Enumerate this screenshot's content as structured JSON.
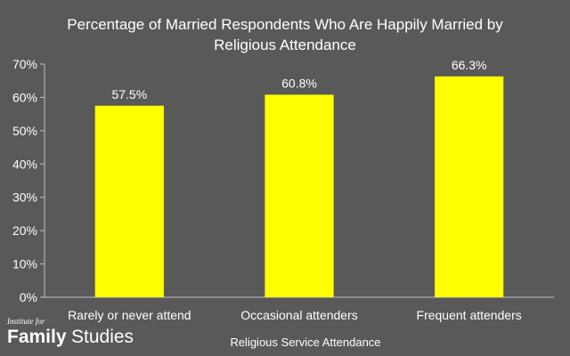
{
  "chart_data": {
    "type": "bar",
    "title_lines": [
      "Percentage of Married Respondents Who Are Happily Married by",
      "Religious Attendance"
    ],
    "categories": [
      "Rarely or never attend",
      "Occasional attenders",
      "Frequent attenders"
    ],
    "values": [
      57.5,
      60.8,
      66.3
    ],
    "value_labels": [
      "57.5%",
      "60.8%",
      "66.3%"
    ],
    "xlabel": "Religious Service Attendance",
    "ylabel": "",
    "ylim": [
      0,
      70
    ],
    "yticks": [
      0,
      10,
      20,
      30,
      40,
      50,
      60,
      70
    ],
    "ytick_labels": [
      "0%",
      "10%",
      "20%",
      "30%",
      "40%",
      "50%",
      "60%",
      "70%"
    ],
    "grid": false,
    "legend": "none",
    "colors": {
      "background": "#595959",
      "bar": "#ffff00",
      "axis": "#bfbfbf",
      "text": "#ffffff"
    }
  },
  "logo": {
    "top_text": "Institute for",
    "word1": "Family",
    "word2": "Studies"
  }
}
